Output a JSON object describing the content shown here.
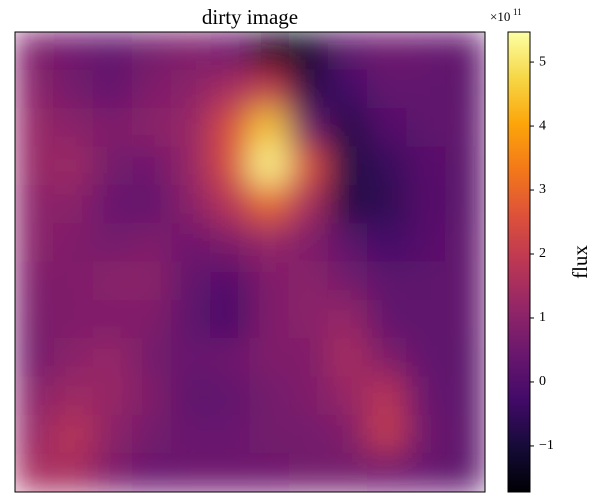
{
  "chart_data": {
    "type": "heatmap",
    "title": "dirty image",
    "colorbar_label": "flux",
    "offset_label": {
      "base": "×10",
      "exponent": "11"
    },
    "colormap": "inferno",
    "zlim": [
      -1.72,
      5.47
    ],
    "zticks": [
      {
        "value": -1,
        "label": "−1"
      },
      0,
      1,
      2,
      3,
      4,
      5
    ],
    "z": [
      [
        0.8,
        0.5,
        0.3,
        0.6,
        0.8,
        0.5,
        -1.5,
        -1.2,
        0.2,
        0.5,
        0.4,
        0.3
      ],
      [
        1.0,
        0.6,
        0.3,
        0.8,
        1.0,
        1.5,
        2.0,
        -0.8,
        -0.3,
        0.3,
        0.3,
        0.2
      ],
      [
        1.2,
        1.0,
        0.8,
        1.0,
        1.2,
        2.5,
        4.5,
        0.5,
        -0.8,
        0,
        0.2,
        0.3
      ],
      [
        1.2,
        1.3,
        0.6,
        0.5,
        1.2,
        2.5,
        5.3,
        2.5,
        -0.8,
        -0.5,
        0.1,
        0.2
      ],
      [
        1.0,
        1.0,
        0.4,
        0.3,
        1.0,
        1.8,
        3.0,
        1.5,
        -0.8,
        -0.6,
        0,
        0.2
      ],
      [
        1.0,
        0.8,
        0.6,
        0.8,
        0.5,
        0.8,
        1.2,
        0.8,
        0.2,
        -0.3,
        0.1,
        0.3
      ],
      [
        0.8,
        0.8,
        1.0,
        1.0,
        0.3,
        0,
        0.8,
        1.0,
        0.6,
        0.2,
        0.2,
        0.3
      ],
      [
        0.7,
        0.8,
        0.8,
        0.8,
        0.2,
        -0.2,
        0.8,
        1.0,
        1.2,
        0.3,
        0.2,
        0.3
      ],
      [
        0.6,
        1.0,
        1.2,
        0.6,
        0.4,
        0.5,
        0.8,
        0.8,
        1.5,
        0.8,
        0.3,
        0.2
      ],
      [
        1.0,
        1.3,
        1.2,
        0.8,
        0.2,
        0.3,
        0.6,
        0.8,
        1.2,
        1.8,
        0.4,
        0.2
      ],
      [
        1.2,
        1.8,
        1.0,
        0.6,
        0.4,
        0.4,
        0.6,
        0.6,
        0.8,
        2.0,
        0.5,
        0.2
      ],
      [
        1.5,
        1.5,
        0.8,
        0.4,
        0.5,
        0.5,
        0.5,
        0.6,
        0.6,
        0.5,
        0.4,
        0.2
      ]
    ]
  }
}
